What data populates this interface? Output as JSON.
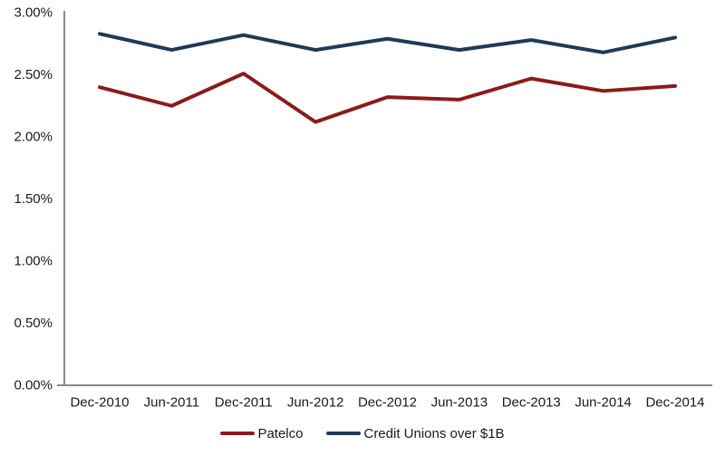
{
  "chart_data": {
    "type": "line",
    "categories": [
      "Dec-2010",
      "Jun-2011",
      "Dec-2011",
      "Jun-2012",
      "Dec-2012",
      "Jun-2013",
      "Dec-2013",
      "Jun-2014",
      "Dec-2014"
    ],
    "series": [
      {
        "name": "Patelco",
        "color": "#8B1B1B",
        "values": [
          2.4,
          2.25,
          2.51,
          2.12,
          2.32,
          2.3,
          2.47,
          2.37,
          2.41
        ]
      },
      {
        "name": "Credit Unions over $1B",
        "color": "#1E3A56",
        "values": [
          2.83,
          2.7,
          2.82,
          2.7,
          2.79,
          2.7,
          2.78,
          2.68,
          2.8
        ]
      }
    ],
    "title": "",
    "xlabel": "",
    "ylabel": "",
    "ylim": [
      0,
      3
    ],
    "y_tick_step": 0.5,
    "y_tick_labels": [
      "0.00%",
      "0.50%",
      "1.00%",
      "1.50%",
      "2.00%",
      "2.50%",
      "3.00%"
    ],
    "grid": "off",
    "legend_position": "bottom",
    "axis_color": "#898989",
    "text_color": "#1a1a1a",
    "line_width": 4
  }
}
